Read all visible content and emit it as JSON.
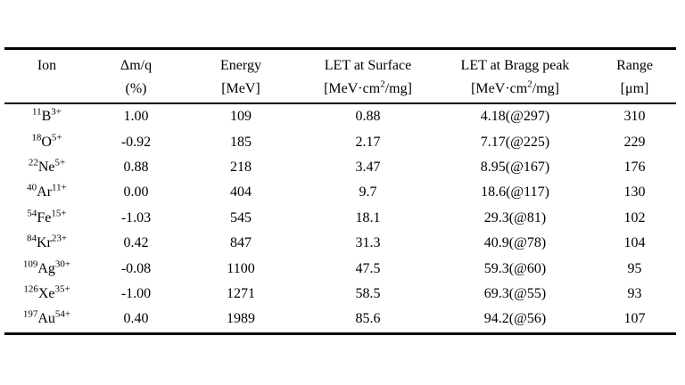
{
  "style": {
    "background_color": "#ffffff",
    "text_color": "#000000",
    "rule_color": "#000000"
  },
  "table": {
    "columns": [
      {
        "label": "Ion",
        "unit": ""
      },
      {
        "label": "Δm/q",
        "unit": "(%)"
      },
      {
        "label": "Energy",
        "unit": "[MeV]"
      },
      {
        "label": "LET at Surface",
        "unit": "[MeV·cm^2^/mg]"
      },
      {
        "label": "LET at Bragg peak",
        "unit": "[MeV·cm^2^/mg]"
      },
      {
        "label": "Range",
        "unit": "[μm]"
      }
    ],
    "rows": [
      [
        "^11^B^3+^",
        "1.00",
        "109",
        "0.88",
        "4.18(@297)",
        "310"
      ],
      [
        "^18^O^5+^",
        "-0.92",
        "185",
        "2.17",
        "7.17(@225)",
        "229"
      ],
      [
        "^22^Ne^5+^",
        "0.88",
        "218",
        "3.47",
        "8.95(@167)",
        "176"
      ],
      [
        "^40^Ar^11+^",
        "0.00",
        "404",
        "9.7",
        "18.6(@117)",
        "130"
      ],
      [
        "^54^Fe^15+^",
        "-1.03",
        "545",
        "18.1",
        "29.3(@81)",
        "102"
      ],
      [
        "^84^Kr^23+^",
        "0.42",
        "847",
        "31.3",
        "40.9(@78)",
        "104"
      ],
      [
        "^109^Ag^30+^",
        "-0.08",
        "1100",
        "47.5",
        "59.3(@60)",
        "95"
      ],
      [
        "^126^Xe^35+^",
        "-1.00",
        "1271",
        "58.5",
        "69.3(@55)",
        "93"
      ],
      [
        "^197^Au^54+^",
        "0.40",
        "1989",
        "85.6",
        "94.2(@56)",
        "107"
      ]
    ],
    "field_names": [
      "ion",
      "delta-m-q",
      "energy",
      "let-surface",
      "let-bragg-peak",
      "range"
    ]
  }
}
